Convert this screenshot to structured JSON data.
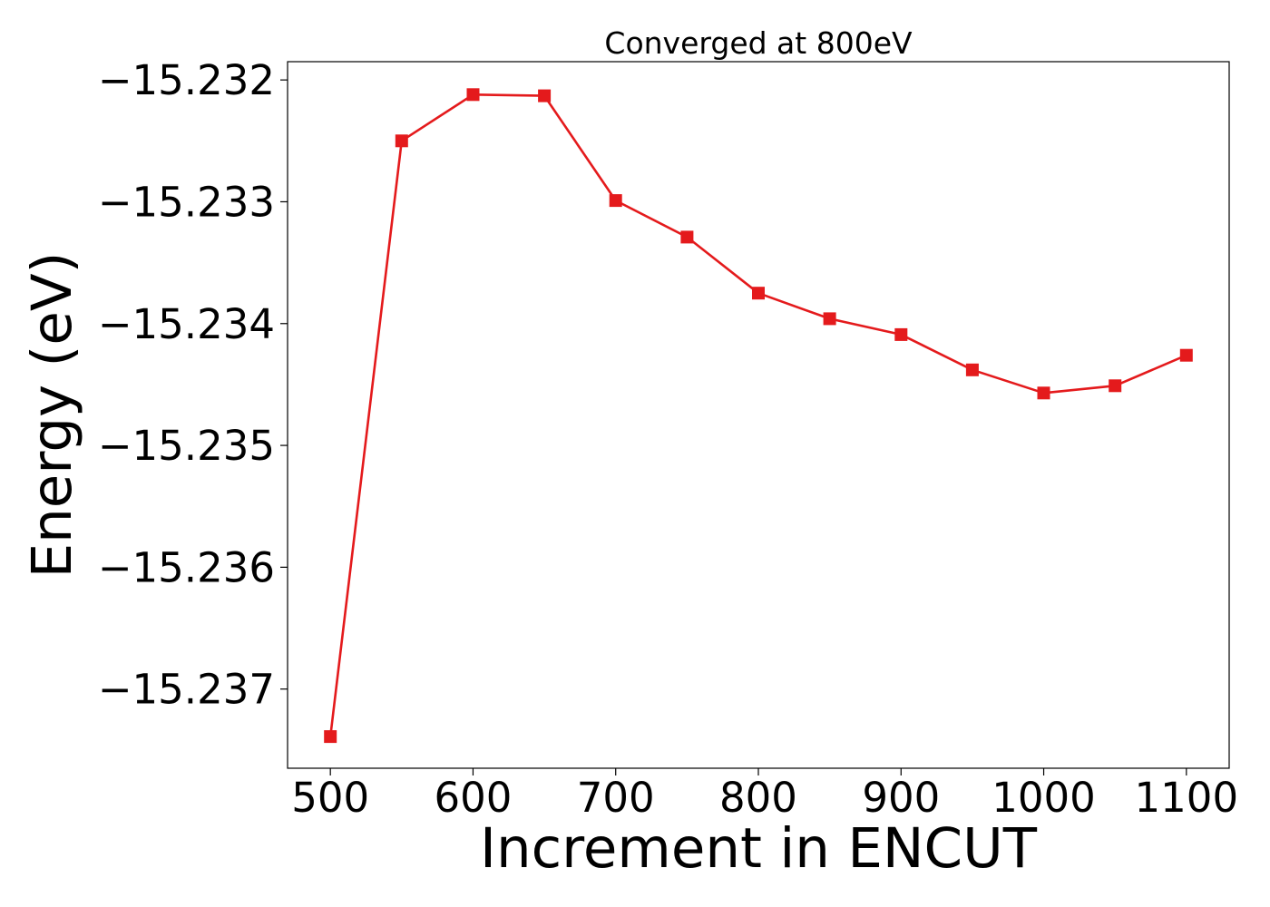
{
  "chart_data": {
    "type": "line",
    "title": "Converged at 800eV",
    "xlabel": "Increment in ENCUT",
    "ylabel": "Energy (eV)",
    "xlim": [
      470,
      1130
    ],
    "ylim": [
      -15.23765,
      -15.23185
    ],
    "x_ticks": [
      500,
      600,
      700,
      800,
      900,
      1000,
      1100
    ],
    "x_tick_labels": [
      "500",
      "600",
      "700",
      "800",
      "900",
      "1000",
      "1100"
    ],
    "y_ticks": [
      -15.237,
      -15.236,
      -15.235,
      -15.234,
      -15.233,
      -15.232
    ],
    "y_tick_labels": [
      "−15.237",
      "−15.236",
      "−15.235",
      "−15.234",
      "−15.233",
      "−15.232"
    ],
    "grid": false,
    "series": [
      {
        "color": "#e41a1c",
        "marker": "square",
        "x": [
          500,
          550,
          600,
          650,
          700,
          750,
          800,
          850,
          900,
          950,
          1000,
          1050,
          1100
        ],
        "y": [
          -15.23739,
          -15.2325,
          -15.23212,
          -15.23213,
          -15.23299,
          -15.23329,
          -15.23375,
          -15.23396,
          -15.23409,
          -15.23438,
          -15.23457,
          -15.23451,
          -15.23426
        ]
      }
    ]
  }
}
